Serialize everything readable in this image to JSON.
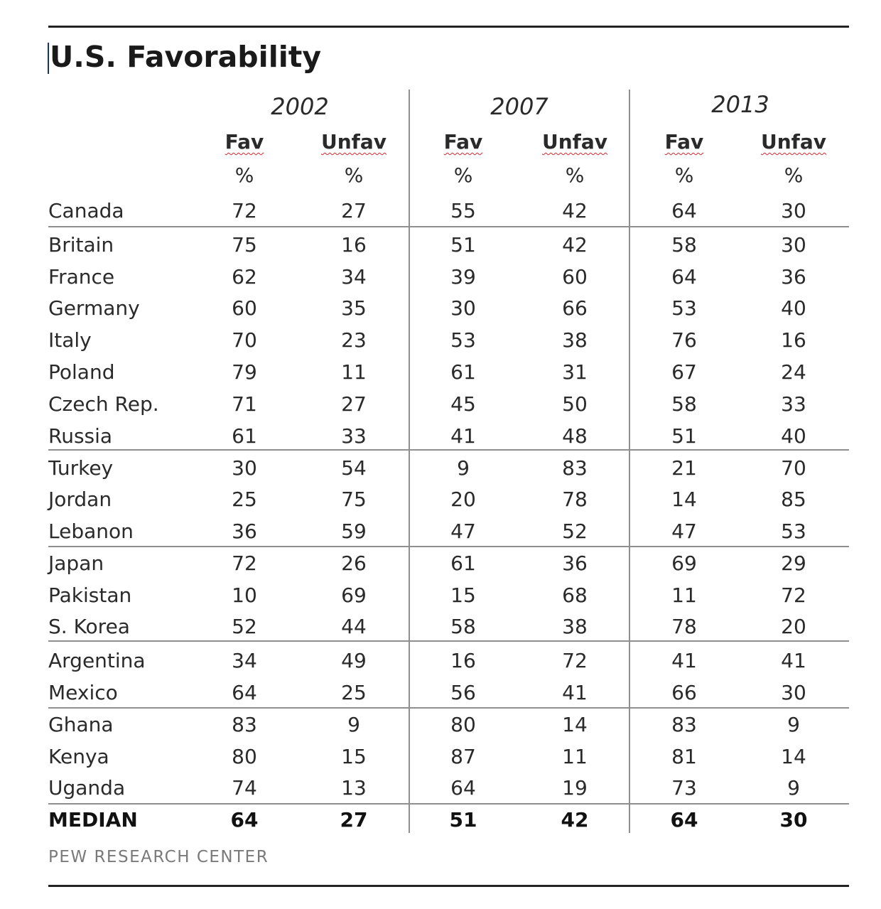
{
  "title": "U.S. Favorability",
  "source": "PEW RESEARCH CENTER",
  "chart_data": {
    "type": "table",
    "title": "U.S. Favorability",
    "years": [
      "2002",
      "2007",
      "2013"
    ],
    "subheaders": [
      "Fav",
      "Unfav"
    ],
    "unit": "%",
    "rows": [
      {
        "country": "Canada",
        "values": [
          72,
          27,
          55,
          42,
          64,
          30
        ]
      },
      {
        "country": "Britain",
        "values": [
          75,
          16,
          51,
          42,
          58,
          30
        ]
      },
      {
        "country": "France",
        "values": [
          62,
          34,
          39,
          60,
          64,
          36
        ]
      },
      {
        "country": "Germany",
        "values": [
          60,
          35,
          30,
          66,
          53,
          40
        ]
      },
      {
        "country": "Italy",
        "values": [
          70,
          23,
          53,
          38,
          76,
          16
        ]
      },
      {
        "country": "Poland",
        "values": [
          79,
          11,
          61,
          31,
          67,
          24
        ]
      },
      {
        "country": "Czech Rep.",
        "values": [
          71,
          27,
          45,
          50,
          58,
          33
        ]
      },
      {
        "country": "Russia",
        "values": [
          61,
          33,
          41,
          48,
          51,
          40
        ]
      },
      {
        "country": "Turkey",
        "values": [
          30,
          54,
          9,
          83,
          21,
          70
        ]
      },
      {
        "country": "Jordan",
        "values": [
          25,
          75,
          20,
          78,
          14,
          85
        ]
      },
      {
        "country": "Lebanon",
        "values": [
          36,
          59,
          47,
          52,
          47,
          53
        ]
      },
      {
        "country": "Japan",
        "values": [
          72,
          26,
          61,
          36,
          69,
          29
        ]
      },
      {
        "country": "Pakistan",
        "values": [
          10,
          69,
          15,
          68,
          11,
          72
        ]
      },
      {
        "country": "S. Korea",
        "values": [
          52,
          44,
          58,
          38,
          78,
          20
        ]
      },
      {
        "country": "Argentina",
        "values": [
          34,
          49,
          16,
          72,
          41,
          41
        ]
      },
      {
        "country": "Mexico",
        "values": [
          64,
          25,
          56,
          41,
          66,
          30
        ]
      },
      {
        "country": "Ghana",
        "values": [
          83,
          9,
          80,
          14,
          83,
          9
        ]
      },
      {
        "country": "Kenya",
        "values": [
          80,
          15,
          87,
          11,
          81,
          14
        ]
      },
      {
        "country": "Uganda",
        "values": [
          74,
          13,
          64,
          19,
          73,
          9
        ]
      },
      {
        "country": "MEDIAN",
        "values": [
          64,
          27,
          51,
          42,
          64,
          30
        ]
      }
    ],
    "group_breaks_after": [
      "Canada",
      "Russia",
      "Lebanon",
      "S. Korea",
      "Mexico",
      "Uganda"
    ]
  }
}
